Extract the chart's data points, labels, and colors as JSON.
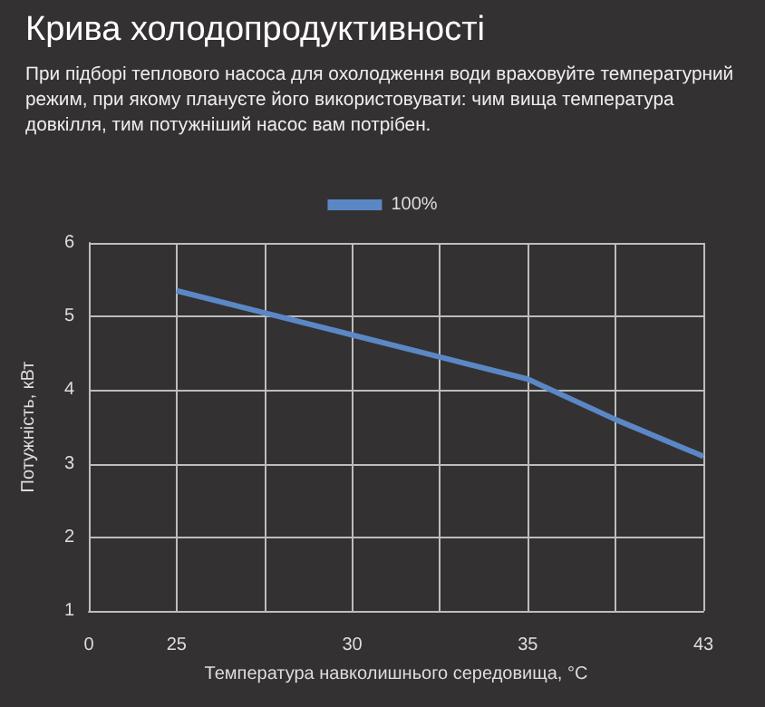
{
  "chart_data": {
    "type": "line",
    "title": "Крива холодопродуктивності",
    "subtitle": "При підборі теплового насоса для охолодження води враховуйте температурний режим, при якому плануєте його використовувати: чим вища температура довкілля, тим потужніший насос вам потрібен.",
    "xlabel": "Температура навколишнього середовища, °C",
    "ylabel": "Потужність, кВт",
    "categories": [
      "0",
      "25",
      null,
      "30",
      null,
      "35",
      null,
      "43"
    ],
    "series": [
      {
        "name": "100%",
        "color": "#5b87c5",
        "values": [
          null,
          5.35,
          5.05,
          4.75,
          4.45,
          4.15,
          3.6,
          3.1
        ]
      }
    ],
    "ylim": [
      1,
      6
    ],
    "yticks": [
      1,
      2,
      3,
      4,
      5,
      6
    ],
    "grid": true,
    "legend": "top"
  }
}
